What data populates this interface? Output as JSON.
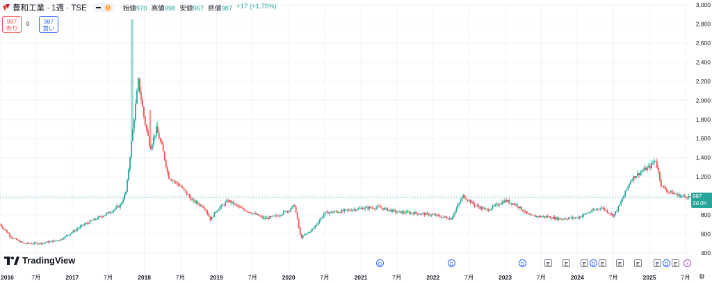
{
  "header": {
    "title": "豊和工業 · 1週 · TSE",
    "data_badge": "D",
    "ohlc": [
      {
        "label": "始値",
        "value": "970"
      },
      {
        "label": "高値",
        "value": "998"
      },
      {
        "label": "安値",
        "value": "967"
      },
      {
        "label": "終値",
        "value": "987"
      }
    ],
    "change": "+17 (+1.75%)"
  },
  "trade": {
    "sell_price": "987",
    "sell_label": "売り",
    "spread": "0",
    "buy_price": "987",
    "buy_label": "買い"
  },
  "price_label": {
    "price": "987",
    "countdown": "2d 0h"
  },
  "logo": {
    "text": "TradingView"
  },
  "colors": {
    "up": "#26a69a",
    "down": "#ef5350",
    "accent": "#2962ff",
    "grid": "#f0f3fa"
  },
  "events": [
    {
      "type": "D",
      "label": "D"
    },
    {
      "type": "D",
      "label": "D"
    },
    {
      "type": "D",
      "label": "D"
    },
    {
      "type": "E",
      "label": "E"
    },
    {
      "type": "E",
      "label": "E"
    },
    {
      "type": "E",
      "label": "E"
    },
    {
      "type": "D",
      "label": "D"
    },
    {
      "type": "E",
      "label": "E"
    },
    {
      "type": "E",
      "label": "E"
    },
    {
      "type": "E",
      "label": "E"
    },
    {
      "type": "E",
      "label": "E"
    },
    {
      "type": "D",
      "label": "D"
    },
    {
      "type": "E",
      "label": "E"
    },
    {
      "type": "S",
      "label": "⚡"
    }
  ],
  "chart_data": {
    "type": "candlestick",
    "y_ticks": [
      "3,000",
      "2,800",
      "2,600",
      "2,400",
      "2,200",
      "2,000",
      "1,800",
      "1,600",
      "1,400",
      "1,200",
      "1,000",
      "800",
      "600",
      "400"
    ],
    "ylim": [
      400,
      3000
    ],
    "x_ticks": [
      {
        "label": "2016",
        "year": true
      },
      {
        "label": "7月",
        "year": false
      },
      {
        "label": "2017",
        "year": true
      },
      {
        "label": "7月",
        "year": false
      },
      {
        "label": "2018",
        "year": true
      },
      {
        "label": "7月",
        "year": false
      },
      {
        "label": "2019",
        "year": true
      },
      {
        "label": "7月",
        "year": false
      },
      {
        "label": "2020",
        "year": true
      },
      {
        "label": "7月",
        "year": false
      },
      {
        "label": "2021",
        "year": true
      },
      {
        "label": "7月",
        "year": false
      },
      {
        "label": "2022",
        "year": true
      },
      {
        "label": "7月",
        "year": false
      },
      {
        "label": "2023",
        "year": true
      },
      {
        "label": "7月",
        "year": false
      },
      {
        "label": "2024",
        "year": true
      },
      {
        "label": "7月",
        "year": false
      },
      {
        "label": "2025",
        "year": true
      },
      {
        "label": "7月",
        "year": false
      }
    ],
    "x_range": [
      "2016-01",
      "2025-10"
    ],
    "last_price": 987,
    "price_path": [
      [
        "2016-01",
        700
      ],
      [
        "2016-03",
        560
      ],
      [
        "2016-05",
        500
      ],
      [
        "2016-08",
        505
      ],
      [
        "2016-11",
        540
      ],
      [
        "2017-01",
        620
      ],
      [
        "2017-03",
        700
      ],
      [
        "2017-05",
        760
      ],
      [
        "2017-07",
        820
      ],
      [
        "2017-09",
        900
      ],
      [
        "2017-10",
        1050
      ],
      [
        "2017-11",
        1650
      ],
      [
        "2017-12",
        2200
      ],
      [
        "2018-01",
        1800
      ],
      [
        "2018-02",
        1500
      ],
      [
        "2018-03",
        1700
      ],
      [
        "2018-04",
        1500
      ],
      [
        "2018-05",
        1200
      ],
      [
        "2018-07",
        1100
      ],
      [
        "2018-09",
        950
      ],
      [
        "2018-11",
        880
      ],
      [
        "2018-12",
        750
      ],
      [
        "2019-01",
        850
      ],
      [
        "2019-03",
        950
      ],
      [
        "2019-05",
        870
      ],
      [
        "2019-07",
        820
      ],
      [
        "2019-09",
        760
      ],
      [
        "2019-11",
        790
      ],
      [
        "2020-01",
        850
      ],
      [
        "2020-02",
        900
      ],
      [
        "2020-03",
        560
      ],
      [
        "2020-05",
        650
      ],
      [
        "2020-07",
        820
      ],
      [
        "2020-10",
        840
      ],
      [
        "2021-01",
        870
      ],
      [
        "2021-04",
        880
      ],
      [
        "2021-07",
        830
      ],
      [
        "2021-10",
        820
      ],
      [
        "2022-01",
        800
      ],
      [
        "2022-04",
        760
      ],
      [
        "2022-06",
        1000
      ],
      [
        "2022-08",
        900
      ],
      [
        "2022-10",
        850
      ],
      [
        "2023-01",
        950
      ],
      [
        "2023-03",
        900
      ],
      [
        "2023-05",
        790
      ],
      [
        "2023-08",
        780
      ],
      [
        "2023-10",
        760
      ],
      [
        "2024-01",
        770
      ],
      [
        "2024-03",
        830
      ],
      [
        "2024-05",
        880
      ],
      [
        "2024-07",
        790
      ],
      [
        "2024-08",
        900
      ],
      [
        "2024-10",
        1180
      ],
      [
        "2024-12",
        1270
      ],
      [
        "2025-01",
        1300
      ],
      [
        "2025-02",
        1380
      ],
      [
        "2025-03",
        1100
      ],
      [
        "2025-04",
        1050
      ],
      [
        "2025-06",
        1000
      ],
      [
        "2025-08",
        987
      ]
    ],
    "spikes": [
      {
        "date": "2017-11",
        "high": 2850
      },
      {
        "date": "2018-02",
        "high": 1900
      }
    ]
  }
}
